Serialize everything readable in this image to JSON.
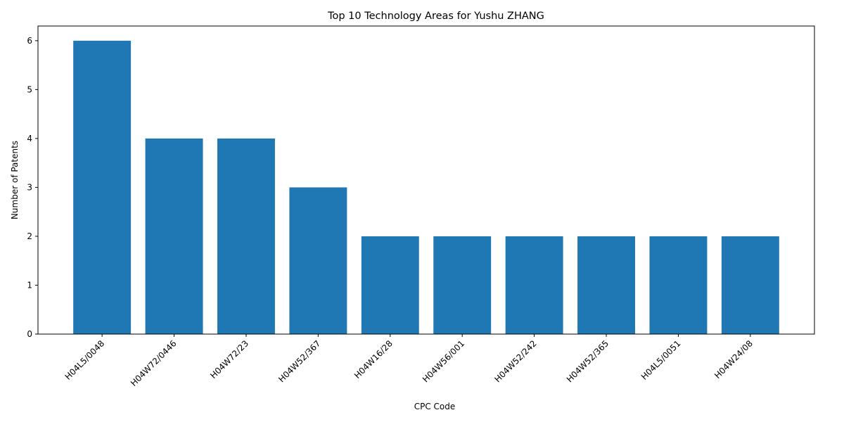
{
  "chart_data": {
    "type": "bar",
    "title": "Top 10 Technology Areas for Yushu ZHANG",
    "xlabel": "CPC Code",
    "ylabel": "Number of Patents",
    "categories": [
      "H04L5/0048",
      "H04W72/0446",
      "H04W72/23",
      "H04W52/367",
      "H04W16/28",
      "H04W56/001",
      "H04W52/242",
      "H04W52/365",
      "H04L5/0051",
      "H04W24/08"
    ],
    "values": [
      6,
      4,
      4,
      3,
      2,
      2,
      2,
      2,
      2,
      2
    ],
    "ylim": [
      0,
      6.3
    ],
    "yticks": [
      0,
      1,
      2,
      3,
      4,
      5,
      6
    ],
    "bar_color": "#1f77b4",
    "grid": false,
    "legend": "none"
  }
}
